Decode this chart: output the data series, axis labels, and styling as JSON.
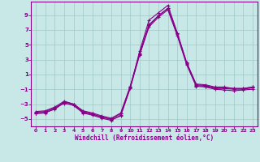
{
  "xlabel": "Windchill (Refroidissement éolien,°C)",
  "bg_color": "#c8e8e8",
  "grid_color": "#9fc8c8",
  "line_color": "#880088",
  "xlim": [
    -0.5,
    23.5
  ],
  "ylim": [
    -6.0,
    10.8
  ],
  "xticks": [
    0,
    1,
    2,
    3,
    4,
    5,
    6,
    7,
    8,
    9,
    10,
    11,
    12,
    13,
    14,
    15,
    16,
    17,
    18,
    19,
    20,
    21,
    22,
    23
  ],
  "yticks": [
    -5,
    -3,
    -1,
    1,
    3,
    5,
    7,
    9
  ],
  "lines": [
    [
      -4.2,
      -4.1,
      -3.7,
      -2.8,
      -3.2,
      -4.2,
      -4.5,
      -4.9,
      -5.2,
      -4.5,
      -0.9,
      3.6,
      7.4,
      8.7,
      9.7,
      6.2,
      2.3,
      -0.6,
      -0.7,
      -1.0,
      -1.1,
      -1.2,
      -1.1,
      -1.0
    ],
    [
      -4.3,
      -4.2,
      -3.6,
      -2.7,
      -3.0,
      -4.0,
      -4.3,
      -4.8,
      -5.0,
      -4.3,
      -0.7,
      3.8,
      7.7,
      8.9,
      9.9,
      6.4,
      2.4,
      -0.5,
      -0.6,
      -0.9,
      -0.9,
      -1.0,
      -1.0,
      -0.8
    ],
    [
      -4.0,
      -3.9,
      -3.4,
      -2.6,
      -3.0,
      -3.9,
      -4.2,
      -4.6,
      -4.9,
      -4.2,
      -0.6,
      3.7,
      7.6,
      8.9,
      9.9,
      6.5,
      2.5,
      -0.4,
      -0.5,
      -0.8,
      -0.8,
      -0.9,
      -0.9,
      -0.7
    ],
    [
      -4.1,
      -4.0,
      -3.5,
      -2.9,
      -3.1,
      -4.1,
      -4.4,
      -4.7,
      -5.1,
      -4.6,
      -0.8,
      4.1,
      8.3,
      9.3,
      10.3,
      6.6,
      2.6,
      -0.3,
      -0.4,
      -0.7,
      -0.7,
      -0.9,
      -0.9,
      -0.7
    ]
  ]
}
